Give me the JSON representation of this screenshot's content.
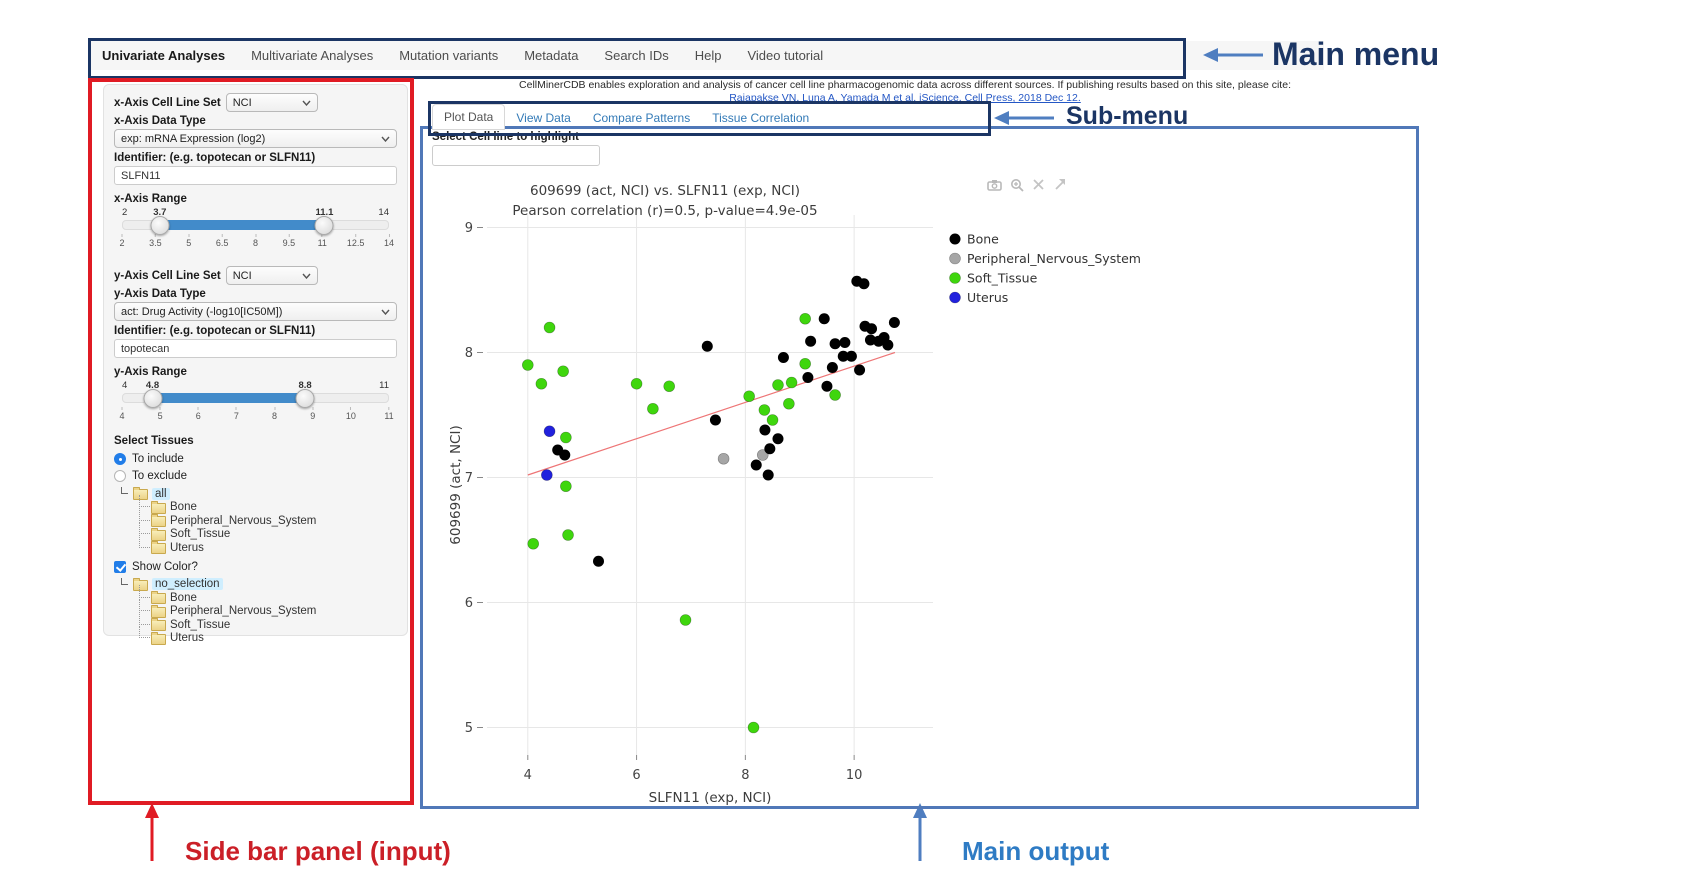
{
  "annotations": {
    "main_menu_label": "Main menu",
    "sub_menu_label": "Sub-menu",
    "sidebar_label": "Side bar panel (input)",
    "main_output_label": "Main output",
    "navy": "#1b3564",
    "arrow_blue": "#4f7ec0",
    "red": "#cb1f27",
    "output_blue": "#2e7bc4"
  },
  "main_menu": {
    "items": [
      {
        "label": "Univariate Analyses",
        "active": true
      },
      {
        "label": "Multivariate Analyses",
        "active": false
      },
      {
        "label": "Mutation variants",
        "active": false
      },
      {
        "label": "Metadata",
        "active": false
      },
      {
        "label": "Search IDs",
        "active": false
      },
      {
        "label": "Help",
        "active": false
      },
      {
        "label": "Video tutorial",
        "active": false
      }
    ]
  },
  "citation": {
    "text": "CellMinerCDB enables exploration and analysis of cancer cell line pharmacogenomic data across different sources. If publishing results based on this site, please cite:",
    "link": "Rajapakse VN, Luna A, Yamada M et al. iScience, Cell Press, 2018 Dec 12."
  },
  "submenu": {
    "tabs": [
      {
        "label": "Plot Data",
        "active": true
      },
      {
        "label": "View Data",
        "active": false
      },
      {
        "label": "Compare Patterns",
        "active": false
      },
      {
        "label": "Tissue Correlation",
        "active": false
      }
    ]
  },
  "sidebar": {
    "x_axis": {
      "cell_line_set_label": "x-Axis Cell Line Set",
      "cell_line_set_value": "NCI",
      "data_type_label": "x-Axis Data Type",
      "data_type_value": "exp: mRNA Expression (log2)",
      "identifier_label": "Identifier: (e.g. topotecan or SLFN11)",
      "identifier_value": "SLFN11",
      "range_label": "x-Axis Range",
      "range": {
        "min": 2,
        "max": 14,
        "from": 3.7,
        "to": 11.1,
        "ticks": [
          "2",
          "3.5",
          "5",
          "6.5",
          "8",
          "9.5",
          "11",
          "12.5",
          "14"
        ]
      }
    },
    "y_axis": {
      "cell_line_set_label": "y-Axis Cell Line Set",
      "cell_line_set_value": "NCI",
      "data_type_label": "y-Axis Data Type",
      "data_type_value": "act: Drug Activity (-log10[IC50M])",
      "identifier_label": "Identifier: (e.g. topotecan or SLFN11)",
      "identifier_value": "topotecan",
      "range_label": "y-Axis Range",
      "range": {
        "min": 4,
        "max": 11,
        "from": 4.8,
        "to": 8.8,
        "ticks": [
          "4",
          "5",
          "6",
          "7",
          "8",
          "9",
          "10",
          "11"
        ]
      }
    },
    "tissues": {
      "section_label": "Select Tissues",
      "radios": [
        {
          "label": "To include",
          "selected": true
        },
        {
          "label": "To exclude",
          "selected": false
        }
      ],
      "show_color_label": "Show Color?",
      "show_color_checked": true,
      "trees": [
        {
          "root": "all",
          "children": [
            "Bone",
            "Peripheral_Nervous_System",
            "Soft_Tissue",
            "Uterus"
          ]
        },
        {
          "root": "no_selection",
          "children": [
            "Bone",
            "Peripheral_Nervous_System",
            "Soft_Tissue",
            "Uterus"
          ]
        }
      ]
    }
  },
  "main_output": {
    "highlight_label": "Select Cell line to highlight",
    "highlight_value": "",
    "modebar_icons": [
      "camera-icon",
      "zoom-in-icon",
      "pan-icon",
      "reset-axes-icon"
    ]
  },
  "chart_data": {
    "type": "scatter",
    "title": "609699 (act, NCI) vs. SLFN11 (exp, NCI)",
    "subtitle": "Pearson correlation (r)=0.5, p-value=4.9e-05",
    "xlabel": "SLFN11 (exp, NCI)",
    "ylabel": "609699 (act, NCI)",
    "xlim": [
      3.25,
      11.45
    ],
    "ylim": [
      4.78,
      9.1
    ],
    "xticks": [
      4,
      6,
      8,
      10
    ],
    "yticks": [
      5,
      6,
      7,
      8,
      9
    ],
    "grid": true,
    "legend_position": "right",
    "regression_line": {
      "x1": 4.0,
      "y1": 7.02,
      "x2": 10.75,
      "y2": 8.0,
      "color": "#ee7576"
    },
    "series": [
      {
        "name": "Bone",
        "color": "#000000",
        "points": [
          [
            5.3,
            6.33
          ],
          [
            4.55,
            7.22
          ],
          [
            4.68,
            7.18
          ],
          [
            7.3,
            8.05
          ],
          [
            7.45,
            7.46
          ],
          [
            8.2,
            7.1
          ],
          [
            8.36,
            7.38
          ],
          [
            8.42,
            7.02
          ],
          [
            8.45,
            7.23
          ],
          [
            8.6,
            7.31
          ],
          [
            8.7,
            7.96
          ],
          [
            9.15,
            7.8
          ],
          [
            9.2,
            8.09
          ],
          [
            9.45,
            8.27
          ],
          [
            9.5,
            7.73
          ],
          [
            9.6,
            7.88
          ],
          [
            9.65,
            8.07
          ],
          [
            9.8,
            7.97
          ],
          [
            9.83,
            8.08
          ],
          [
            9.95,
            7.97
          ],
          [
            10.1,
            7.86
          ],
          [
            10.05,
            8.57
          ],
          [
            10.18,
            8.55
          ],
          [
            10.2,
            8.21
          ],
          [
            10.32,
            8.19
          ],
          [
            10.3,
            8.1
          ],
          [
            10.45,
            8.09
          ],
          [
            10.55,
            8.12
          ],
          [
            10.62,
            8.06
          ],
          [
            10.74,
            8.24
          ]
        ]
      },
      {
        "name": "Peripheral_Nervous_System",
        "color": "#a6a6a6",
        "points": [
          [
            7.6,
            7.15
          ],
          [
            8.32,
            7.18
          ]
        ]
      },
      {
        "name": "Soft_Tissue",
        "color": "#3fd60d",
        "points": [
          [
            4.4,
            8.2
          ],
          [
            4.0,
            7.9
          ],
          [
            4.65,
            7.85
          ],
          [
            4.25,
            7.75
          ],
          [
            6.0,
            7.75
          ],
          [
            6.6,
            7.73
          ],
          [
            6.3,
            7.55
          ],
          [
            4.7,
            7.32
          ],
          [
            4.7,
            6.93
          ],
          [
            4.1,
            6.47
          ],
          [
            4.74,
            6.54
          ],
          [
            6.9,
            5.86
          ],
          [
            8.15,
            5.0
          ],
          [
            8.07,
            7.65
          ],
          [
            8.35,
            7.54
          ],
          [
            8.5,
            7.46
          ],
          [
            8.6,
            7.74
          ],
          [
            8.85,
            7.76
          ],
          [
            8.8,
            7.59
          ],
          [
            9.1,
            7.91
          ],
          [
            9.1,
            8.27
          ],
          [
            9.65,
            7.66
          ]
        ]
      },
      {
        "name": "Uterus",
        "color": "#2121dd",
        "points": [
          [
            4.4,
            7.37
          ],
          [
            4.35,
            7.02
          ]
        ]
      }
    ]
  }
}
